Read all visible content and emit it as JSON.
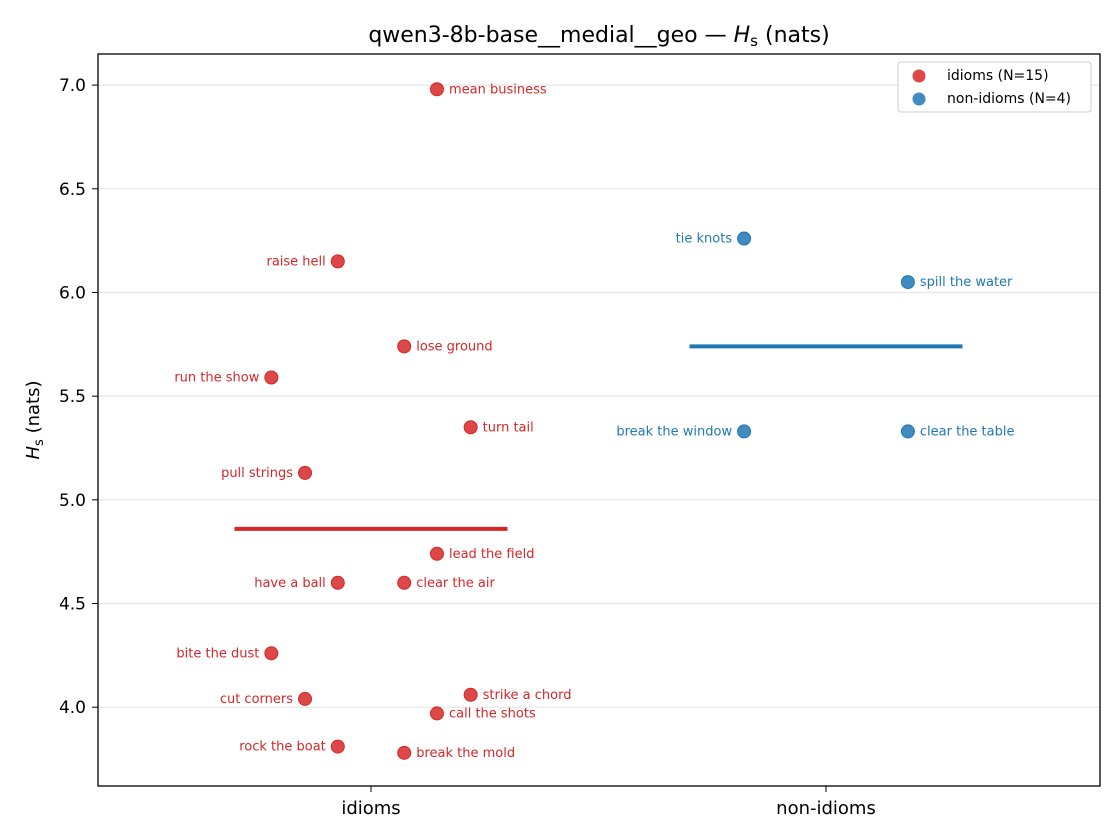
{
  "chart_data": {
    "type": "scatter",
    "title": "qwen3-8b-base__medial__geo — ",
    "title_math": "H",
    "title_sub": "s",
    "title_tail": " (nats)",
    "ylabel_main": "H",
    "ylabel_sub": "s",
    "ylabel_tail": " (nats)",
    "xlabel": "",
    "categories": [
      "idioms",
      "non-idioms"
    ],
    "ylim": [
      3.62,
      7.15
    ],
    "yticks": [
      "4.0",
      "4.5",
      "5.0",
      "5.5",
      "6.0",
      "6.5",
      "7.0"
    ],
    "grid": "horizontal",
    "legend_position": "top-right",
    "series": [
      {
        "name": "idioms (N=15)",
        "color": "#d62728",
        "mean": 4.86,
        "points": [
          {
            "label": "mean business",
            "y": 6.98,
            "offset": 0.145,
            "side": "right"
          },
          {
            "label": "raise hell",
            "y": 6.15,
            "offset": -0.073,
            "side": "left"
          },
          {
            "label": "lose ground",
            "y": 5.74,
            "offset": 0.073,
            "side": "right"
          },
          {
            "label": "run the show",
            "y": 5.59,
            "offset": -0.219,
            "side": "left"
          },
          {
            "label": "turn tail",
            "y": 5.35,
            "offset": 0.219,
            "side": "right"
          },
          {
            "label": "pull strings",
            "y": 5.13,
            "offset": -0.145,
            "side": "left"
          },
          {
            "label": "lead the field",
            "y": 4.74,
            "offset": 0.145,
            "side": "right"
          },
          {
            "label": "have a ball",
            "y": 4.6,
            "offset": -0.073,
            "side": "left"
          },
          {
            "label": "clear the air",
            "y": 4.6,
            "offset": 0.073,
            "side": "right"
          },
          {
            "label": "bite the dust",
            "y": 4.26,
            "offset": -0.219,
            "side": "left"
          },
          {
            "label": "cut corners",
            "y": 4.04,
            "offset": -0.145,
            "side": "left"
          },
          {
            "label": "strike a chord",
            "y": 4.06,
            "offset": 0.219,
            "side": "right"
          },
          {
            "label": "call the shots",
            "y": 3.97,
            "offset": 0.145,
            "side": "right"
          },
          {
            "label": "rock the boat",
            "y": 3.81,
            "offset": -0.073,
            "side": "left"
          },
          {
            "label": "break the mold",
            "y": 3.78,
            "offset": 0.073,
            "side": "right"
          }
        ]
      },
      {
        "name": "non-idioms (N=4)",
        "color": "#1f77b4",
        "mean": 5.74,
        "points": [
          {
            "label": "tie knots",
            "y": 6.26,
            "offset": -0.18,
            "side": "left"
          },
          {
            "label": "spill the water",
            "y": 6.05,
            "offset": 0.18,
            "side": "right"
          },
          {
            "label": "break the window",
            "y": 5.33,
            "offset": -0.18,
            "side": "left"
          },
          {
            "label": "clear the table",
            "y": 5.33,
            "offset": 0.18,
            "side": "right"
          }
        ]
      }
    ]
  }
}
